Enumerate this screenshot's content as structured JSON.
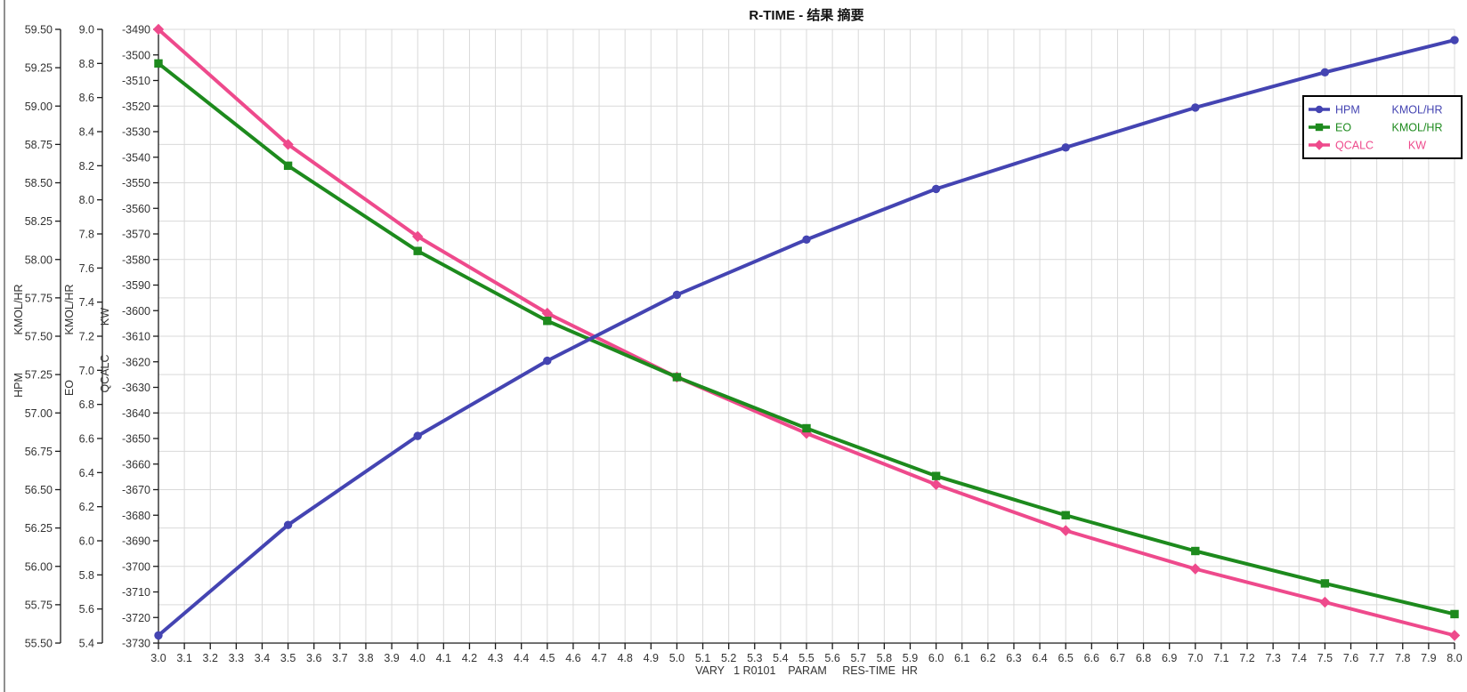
{
  "window": {
    "title": "R-TIME - 结果 摘要"
  },
  "chart_data": {
    "type": "line",
    "title": "R-TIME - 结果 摘要",
    "grid": true,
    "legend_position": "top-right",
    "x_axis": {
      "title": "VARY   1 R0101    PARAM     RES-TIME  HR",
      "min": 3.0,
      "max": 8.0,
      "tick_step": 0.1,
      "tick_labels": [
        "3.0",
        "3.1",
        "3.2",
        "3.3",
        "3.4",
        "3.5",
        "3.6",
        "3.7",
        "3.8",
        "3.9",
        "4.0",
        "4.1",
        "4.2",
        "4.3",
        "4.4",
        "4.5",
        "4.6",
        "4.7",
        "4.8",
        "4.9",
        "5.0",
        "5.1",
        "5.2",
        "5.3",
        "5.4",
        "5.5",
        "5.6",
        "5.7",
        "5.8",
        "5.9",
        "6.0",
        "6.1",
        "6.2",
        "6.3",
        "6.4",
        "6.5",
        "6.6",
        "6.7",
        "6.8",
        "6.9",
        "7.0",
        "7.1",
        "7.2",
        "7.3",
        "7.4",
        "7.5",
        "7.6",
        "7.7",
        "7.8",
        "7.9",
        "8.0"
      ]
    },
    "y_axes": [
      {
        "name": "HPM",
        "unit": "KMOL/HR",
        "min": 55.5,
        "max": 59.5,
        "tick_step": 0.25,
        "tick_labels": [
          "59.50",
          "59.25",
          "59.00",
          "58.75",
          "58.50",
          "58.25",
          "58.00",
          "57.75",
          "57.50",
          "57.25",
          "57.00",
          "56.75",
          "56.50",
          "56.25",
          "56.00",
          "55.75",
          "55.50"
        ],
        "color": "#4444b2"
      },
      {
        "name": "EO",
        "unit": "KMOL/HR",
        "min": 5.4,
        "max": 9.0,
        "tick_step": 0.2,
        "tick_labels": [
          "9.0",
          "8.8",
          "8.6",
          "8.4",
          "8.2",
          "8.0",
          "7.8",
          "7.6",
          "7.4",
          "7.2",
          "7.0",
          "6.8",
          "6.6",
          "6.4",
          "6.2",
          "6.0",
          "5.8",
          "5.6",
          "5.4"
        ],
        "color": "#1d8a1d"
      },
      {
        "name": "QCALC",
        "unit": "KW",
        "min": -3730,
        "max": -3490,
        "tick_step": 10,
        "tick_labels": [
          "-3490",
          "-3500",
          "-3510",
          "-3520",
          "-3530",
          "-3540",
          "-3550",
          "-3560",
          "-3570",
          "-3580",
          "-3590",
          "-3600",
          "-3610",
          "-3620",
          "-3630",
          "-3640",
          "-3650",
          "-3660",
          "-3670",
          "-3680",
          "-3690",
          "-3700",
          "-3710",
          "-3720",
          "-3730"
        ],
        "color": "#ee4a8c"
      }
    ],
    "x": [
      3.0,
      3.5,
      4.0,
      4.5,
      5.0,
      5.5,
      6.0,
      6.5,
      7.0,
      7.5,
      8.0
    ],
    "series": [
      {
        "name": "HPM",
        "unit": "KMOL/HR",
        "axis": 0,
        "marker": "circle",
        "color": "#4444b2",
        "values": [
          55.55,
          56.27,
          56.85,
          57.34,
          57.77,
          58.13,
          58.46,
          58.73,
          58.99,
          59.22,
          59.43
        ]
      },
      {
        "name": "EO",
        "unit": "KMOL/HR",
        "axis": 1,
        "marker": "square",
        "color": "#1d8a1d",
        "values": [
          8.8,
          8.2,
          7.7,
          7.29,
          6.96,
          6.66,
          6.38,
          6.15,
          5.94,
          5.75,
          5.57
        ]
      },
      {
        "name": "QCALC",
        "unit": "KW",
        "axis": 2,
        "marker": "diamond",
        "color": "#ee4a8c",
        "values": [
          -3490,
          -3535,
          -3571,
          -3601,
          -3626,
          -3648,
          -3668,
          -3686,
          -3701,
          -3714,
          -3727
        ]
      }
    ],
    "style": {
      "grid_color": "#d9d9d9",
      "axis_color": "#1a1a1a",
      "label_color": "#333333",
      "legend_border": "#000000",
      "background": "#ffffff"
    }
  }
}
